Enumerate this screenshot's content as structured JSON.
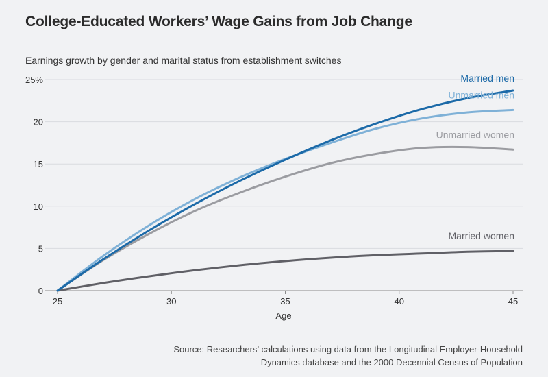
{
  "chart_data": {
    "type": "line",
    "title": "College-Educated Workers’ Wage Gains from Job Change",
    "subtitle": "Earnings growth by gender and marital status from establishment switches",
    "xlabel": "Age",
    "ylabel": "",
    "xlim": [
      25,
      45
    ],
    "ylim": [
      0,
      25
    ],
    "x_ticks": [
      "25",
      "30",
      "35",
      "40",
      "45"
    ],
    "y_ticks": [
      "0",
      "5",
      "10",
      "15",
      "20",
      "25%"
    ],
    "grid": true,
    "x": [
      25,
      27,
      29,
      31,
      33,
      35,
      37,
      39,
      41,
      43,
      45
    ],
    "series": [
      {
        "name": "Married men",
        "color": "#1c6aa8",
        "values": [
          0,
          3.7,
          7.1,
          10.2,
          13.0,
          15.5,
          17.8,
          19.8,
          21.5,
          22.8,
          23.7
        ]
      },
      {
        "name": "Unmarried men",
        "color": "#7fb1d7",
        "values": [
          0,
          4.1,
          7.7,
          10.8,
          13.4,
          15.6,
          17.5,
          19.2,
          20.4,
          21.1,
          21.4
        ]
      },
      {
        "name": "Unmarried women",
        "color": "#9b9ca1",
        "values": [
          0,
          3.6,
          6.7,
          9.4,
          11.6,
          13.5,
          15.1,
          16.2,
          16.9,
          17.0,
          16.7
        ]
      },
      {
        "name": "Married women",
        "color": "#606066",
        "values": [
          0,
          0.9,
          1.7,
          2.4,
          3.0,
          3.5,
          3.9,
          4.2,
          4.4,
          4.6,
          4.7
        ]
      }
    ]
  },
  "source": {
    "line1": "Source: Researchers’ calculations using data from the Longitudinal Employer-Household",
    "line2": "Dynamics database and the 2000 Decennial Census of Population"
  }
}
